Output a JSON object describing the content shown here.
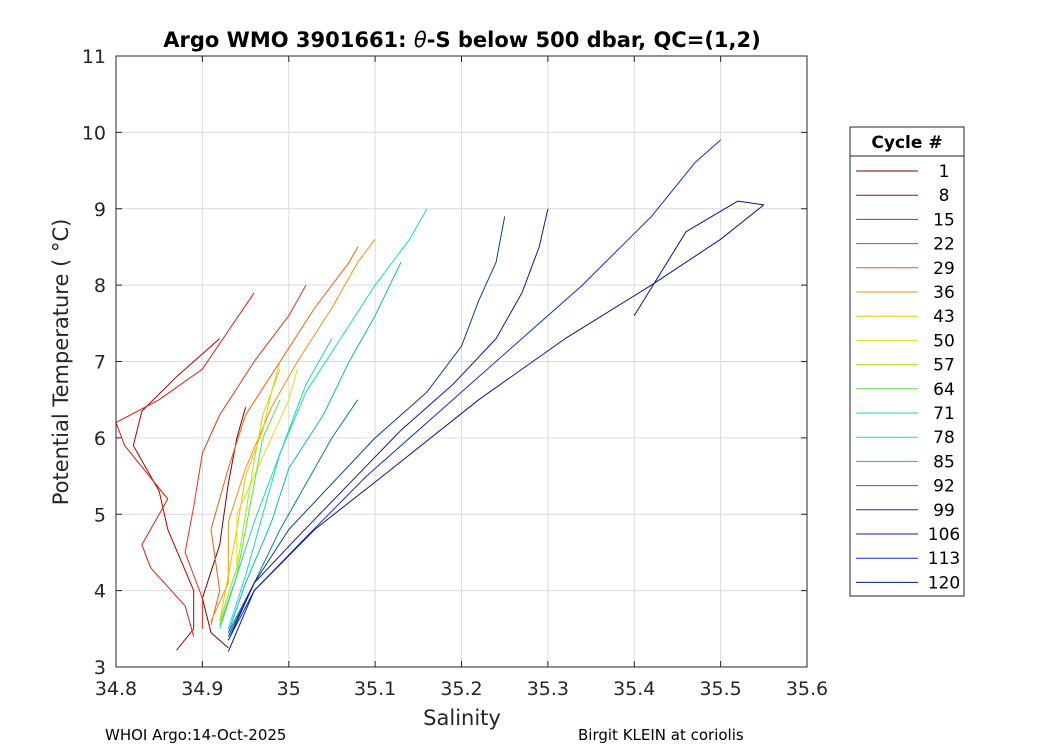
{
  "chart_data": {
    "type": "line",
    "title_prefix": "Argo WMO 3901661: ",
    "title_theta": "θ",
    "title_suffix": "-S below 500 dbar,  QC=(1,2)",
    "xlabel": "Salinity",
    "ylabel": "Potential Temperature ( °C)",
    "xlim": [
      34.8,
      35.6
    ],
    "ylim": [
      3,
      11
    ],
    "xticks": [
      "34.8",
      "34.9",
      "35",
      "35.1",
      "35.2",
      "35.3",
      "35.4",
      "35.5",
      "35.6"
    ],
    "yticks": [
      "3",
      "4",
      "5",
      "6",
      "7",
      "8",
      "9",
      "10",
      "11"
    ],
    "grid": true,
    "legend": {
      "title": "Cycle #",
      "position": "right",
      "entries": [
        {
          "label": "1",
          "color": "#7f0000"
        },
        {
          "label": "8",
          "color": "#b30000"
        },
        {
          "label": "15",
          "color": "#e01b0b"
        },
        {
          "label": "22",
          "color": "#e7311e"
        },
        {
          "label": "29",
          "color": "#f15d12"
        },
        {
          "label": "36",
          "color": "#f78d14"
        },
        {
          "label": "43",
          "color": "#f2c200"
        },
        {
          "label": "50",
          "color": "#d7e40b"
        },
        {
          "label": "57",
          "color": "#a8e612"
        },
        {
          "label": "64",
          "color": "#5ce23a"
        },
        {
          "label": "71",
          "color": "#22d89d"
        },
        {
          "label": "78",
          "color": "#14d7d9"
        },
        {
          "label": "85",
          "color": "#0fb2d3"
        },
        {
          "label": "92",
          "color": "#0c7f8f"
        },
        {
          "label": "99",
          "color": "#0d3f93"
        },
        {
          "label": "106",
          "color": "#10189f"
        },
        {
          "label": "113",
          "color": "#0b2fd6"
        },
        {
          "label": "120",
          "color": "#06178a"
        }
      ]
    },
    "series": [
      {
        "name": "1",
        "color": "#7f0000",
        "points": [
          [
            34.93,
            3.25
          ],
          [
            34.91,
            3.45
          ],
          [
            34.9,
            3.9
          ],
          [
            34.92,
            4.6
          ],
          [
            34.93,
            5.4
          ],
          [
            34.94,
            6.0
          ],
          [
            34.95,
            6.4
          ]
        ]
      },
      {
        "name": "8",
        "color": "#b30000",
        "points": [
          [
            34.87,
            3.22
          ],
          [
            34.89,
            3.5
          ],
          [
            34.89,
            4.0
          ],
          [
            34.86,
            4.8
          ],
          [
            34.85,
            5.3
          ],
          [
            34.82,
            5.9
          ],
          [
            34.83,
            6.35
          ],
          [
            34.87,
            6.8
          ],
          [
            34.9,
            7.1
          ],
          [
            34.92,
            7.3
          ]
        ]
      },
      {
        "name": "15",
        "color": "#e01b0b",
        "points": [
          [
            34.89,
            3.4
          ],
          [
            34.88,
            3.8
          ],
          [
            34.84,
            4.3
          ],
          [
            34.83,
            4.6
          ],
          [
            34.86,
            5.2
          ],
          [
            34.81,
            5.9
          ],
          [
            34.8,
            6.2
          ],
          [
            34.85,
            6.5
          ],
          [
            34.9,
            6.9
          ],
          [
            34.93,
            7.4
          ],
          [
            34.96,
            7.9
          ]
        ]
      },
      {
        "name": "22",
        "color": "#e7311e",
        "points": [
          [
            34.9,
            3.5
          ],
          [
            34.9,
            3.9
          ],
          [
            34.88,
            4.5
          ],
          [
            34.89,
            5.1
          ],
          [
            34.9,
            5.8
          ],
          [
            34.92,
            6.3
          ],
          [
            34.96,
            7.0
          ],
          [
            35.0,
            7.6
          ],
          [
            35.02,
            8.0
          ]
        ]
      },
      {
        "name": "29",
        "color": "#f15d12",
        "points": [
          [
            34.91,
            3.55
          ],
          [
            34.92,
            4.0
          ],
          [
            34.91,
            4.8
          ],
          [
            34.93,
            5.6
          ],
          [
            34.95,
            6.3
          ],
          [
            34.99,
            7.0
          ],
          [
            35.03,
            7.7
          ],
          [
            35.07,
            8.3
          ],
          [
            35.08,
            8.5
          ]
        ]
      },
      {
        "name": "36",
        "color": "#f78d14",
        "points": [
          [
            34.91,
            3.6
          ],
          [
            34.93,
            4.1
          ],
          [
            34.93,
            4.9
          ],
          [
            34.95,
            5.6
          ],
          [
            34.98,
            6.4
          ],
          [
            35.01,
            7.0
          ],
          [
            35.05,
            7.7
          ],
          [
            35.08,
            8.3
          ],
          [
            35.1,
            8.6
          ]
        ]
      },
      {
        "name": "43",
        "color": "#f2c200",
        "points": [
          [
            34.92,
            3.6
          ],
          [
            34.93,
            4.2
          ],
          [
            34.94,
            4.8
          ],
          [
            34.95,
            5.5
          ],
          [
            34.97,
            6.1
          ],
          [
            34.98,
            6.6
          ],
          [
            34.99,
            7.0
          ]
        ]
      },
      {
        "name": "50",
        "color": "#d7e40b",
        "points": [
          [
            34.92,
            3.6
          ],
          [
            34.94,
            4.3
          ],
          [
            34.94,
            5.0
          ],
          [
            34.96,
            5.5
          ],
          [
            34.98,
            6.0
          ],
          [
            35.0,
            6.5
          ],
          [
            35.01,
            6.9
          ]
        ]
      },
      {
        "name": "57",
        "color": "#a8e612",
        "points": [
          [
            34.92,
            3.6
          ],
          [
            34.94,
            4.3
          ],
          [
            34.95,
            5.0
          ],
          [
            34.96,
            5.7
          ],
          [
            34.97,
            6.3
          ],
          [
            34.99,
            6.9
          ]
        ]
      },
      {
        "name": "64",
        "color": "#5ce23a",
        "points": [
          [
            34.92,
            3.55
          ],
          [
            34.94,
            4.2
          ],
          [
            34.95,
            4.8
          ],
          [
            34.96,
            5.4
          ],
          [
            34.97,
            6.0
          ],
          [
            34.99,
            6.5
          ]
        ]
      },
      {
        "name": "71",
        "color": "#22d89d",
        "points": [
          [
            34.92,
            3.5
          ],
          [
            34.94,
            4.2
          ],
          [
            34.96,
            4.9
          ],
          [
            34.98,
            5.5
          ],
          [
            35.0,
            6.1
          ],
          [
            35.02,
            6.7
          ],
          [
            35.05,
            7.3
          ]
        ]
      },
      {
        "name": "78",
        "color": "#14d7d9",
        "points": [
          [
            34.93,
            3.5
          ],
          [
            34.95,
            4.2
          ],
          [
            34.97,
            5.0
          ],
          [
            34.99,
            5.8
          ],
          [
            35.02,
            6.6
          ],
          [
            35.06,
            7.3
          ],
          [
            35.1,
            8.0
          ],
          [
            35.14,
            8.6
          ],
          [
            35.16,
            9.0
          ]
        ]
      },
      {
        "name": "85",
        "color": "#0fb2d3",
        "points": [
          [
            34.93,
            3.45
          ],
          [
            34.95,
            4.1
          ],
          [
            34.98,
            4.9
          ],
          [
            35.0,
            5.6
          ],
          [
            35.04,
            6.3
          ],
          [
            35.07,
            7.0
          ],
          [
            35.1,
            7.6
          ],
          [
            35.13,
            8.3
          ]
        ]
      },
      {
        "name": "92",
        "color": "#0c7f8f",
        "points": [
          [
            34.93,
            3.45
          ],
          [
            34.96,
            4.1
          ],
          [
            34.99,
            4.8
          ],
          [
            35.02,
            5.4
          ],
          [
            35.05,
            6.0
          ],
          [
            35.08,
            6.5
          ]
        ]
      },
      {
        "name": "99",
        "color": "#0d3f93",
        "points": [
          [
            34.93,
            3.4
          ],
          [
            34.96,
            4.1
          ],
          [
            35.0,
            4.8
          ],
          [
            35.05,
            5.4
          ],
          [
            35.1,
            6.0
          ],
          [
            35.16,
            6.6
          ],
          [
            35.2,
            7.2
          ],
          [
            35.22,
            7.8
          ],
          [
            35.24,
            8.3
          ],
          [
            35.25,
            8.9
          ]
        ]
      },
      {
        "name": "106",
        "color": "#10189f",
        "points": [
          [
            34.93,
            3.35
          ],
          [
            34.96,
            4.1
          ],
          [
            35.01,
            4.7
          ],
          [
            35.07,
            5.4
          ],
          [
            35.13,
            6.1
          ],
          [
            35.19,
            6.7
          ],
          [
            35.24,
            7.3
          ],
          [
            35.27,
            7.9
          ],
          [
            35.29,
            8.5
          ],
          [
            35.3,
            9.0
          ]
        ]
      },
      {
        "name": "113",
        "color": "#0b2fd6",
        "points": [
          [
            34.93,
            3.35
          ],
          [
            34.96,
            4.0
          ],
          [
            35.02,
            4.7
          ],
          [
            35.09,
            5.5
          ],
          [
            35.17,
            6.3
          ],
          [
            35.26,
            7.2
          ],
          [
            35.34,
            8.0
          ],
          [
            35.42,
            8.9
          ],
          [
            35.47,
            9.6
          ],
          [
            35.5,
            9.9
          ]
        ]
      },
      {
        "name": "120",
        "color": "#06178a",
        "points": [
          [
            34.93,
            3.2
          ],
          [
            34.96,
            4.0
          ],
          [
            35.03,
            4.8
          ],
          [
            35.12,
            5.6
          ],
          [
            35.22,
            6.5
          ],
          [
            35.32,
            7.3
          ],
          [
            35.42,
            8.0
          ],
          [
            35.5,
            8.6
          ],
          [
            35.55,
            9.05
          ],
          [
            35.52,
            9.1
          ],
          [
            35.46,
            8.7
          ],
          [
            35.4,
            7.6
          ]
        ]
      }
    ]
  },
  "footer": {
    "left": "WHOI Argo:14-Oct-2025",
    "right": "Birgit KLEIN at coriolis"
  }
}
